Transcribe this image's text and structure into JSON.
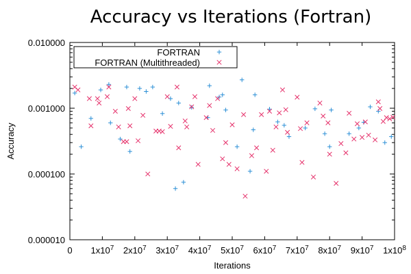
{
  "chart_data": {
    "type": "scatter",
    "title": "Accuracy vs Iterations (Fortran)",
    "xlabel": "Iterations",
    "ylabel": "Accuracy",
    "xlim": [
      0,
      100000000
    ],
    "ylim": [
      1e-05,
      0.01
    ],
    "yscale": "log",
    "grid": false,
    "legend_position": "top-left",
    "x_ticks": [
      {
        "value": 0,
        "base": "0",
        "exp": ""
      },
      {
        "value": 10000000,
        "base": "1x10",
        "exp": "7"
      },
      {
        "value": 20000000,
        "base": "2x10",
        "exp": "7"
      },
      {
        "value": 30000000,
        "base": "3x10",
        "exp": "7"
      },
      {
        "value": 40000000,
        "base": "4x10",
        "exp": "7"
      },
      {
        "value": 50000000,
        "base": "5x10",
        "exp": "7"
      },
      {
        "value": 60000000,
        "base": "6x10",
        "exp": "7"
      },
      {
        "value": 70000000,
        "base": "7x10",
        "exp": "7"
      },
      {
        "value": 80000000,
        "base": "8x10",
        "exp": "7"
      },
      {
        "value": 90000000,
        "base": "9x10",
        "exp": "7"
      },
      {
        "value": 100000000,
        "base": "1x10",
        "exp": "8"
      }
    ],
    "y_ticks": [
      {
        "value": 1e-05,
        "label": "0.000010"
      },
      {
        "value": 0.0001,
        "label": "0.000100"
      },
      {
        "value": 0.001,
        "label": "0.001000"
      },
      {
        "value": 0.01,
        "label": "0.010000"
      }
    ],
    "series": [
      {
        "name": "FORTRAN",
        "marker": "plus",
        "color": "#2b8fd6",
        "points": [
          [
            1500000,
            0.0017
          ],
          [
            3500000,
            0.00026
          ],
          [
            5000000,
            0.0044
          ],
          [
            6500000,
            0.0007
          ],
          [
            9500000,
            0.0019
          ],
          [
            12000000,
            0.0023
          ],
          [
            12500000,
            0.0006
          ],
          [
            15500000,
            0.00034
          ],
          [
            17500000,
            0.0021
          ],
          [
            18500000,
            0.00022
          ],
          [
            21500000,
            0.002
          ],
          [
            23500000,
            0.0018
          ],
          [
            25500000,
            0.0021
          ],
          [
            28500000,
            0.00083
          ],
          [
            31000000,
            0.0014
          ],
          [
            32500000,
            6e-05
          ],
          [
            33500000,
            0.0012
          ],
          [
            35000000,
            7.5e-05
          ],
          [
            37500000,
            0.00103
          ],
          [
            42500000,
            0.00072
          ],
          [
            43000000,
            0.0022
          ],
          [
            46000000,
            0.00148
          ],
          [
            47000000,
            0.0016
          ],
          [
            48000000,
            0.00094
          ],
          [
            51500000,
            0.00026
          ],
          [
            53000000,
            0.0027
          ],
          [
            55500000,
            0.00011
          ],
          [
            56500000,
            0.00047
          ],
          [
            57000000,
            0.0016
          ],
          [
            61500000,
            0.00097
          ],
          [
            64000000,
            0.00062
          ],
          [
            66000000,
            0.00055
          ],
          [
            67500000,
            0.00037
          ],
          [
            72500000,
            0.0005
          ],
          [
            75500000,
            0.00098
          ],
          [
            78500000,
            0.00041
          ],
          [
            80000000,
            0.00026
          ],
          [
            80500000,
            0.00094
          ],
          [
            86000000,
            0.00041
          ],
          [
            89000000,
            0.0005
          ],
          [
            90500000,
            0.00061
          ],
          [
            92500000,
            0.00105
          ],
          [
            95000000,
            0.0009
          ],
          [
            97000000,
            0.0003
          ],
          [
            99000000,
            0.00037
          ]
        ]
      },
      {
        "name": "FORTRAN (Multithreaded)",
        "marker": "cross",
        "color": "#e5306a",
        "points": [
          [
            1500000,
            0.0021
          ],
          [
            2500000,
            0.0019
          ],
          [
            5500000,
            0.0045
          ],
          [
            6000000,
            0.0014
          ],
          [
            6500000,
            0.00054
          ],
          [
            8500000,
            0.0014
          ],
          [
            9000000,
            0.0012
          ],
          [
            11500000,
            0.0015
          ],
          [
            12000000,
            0.0021
          ],
          [
            14000000,
            0.0009
          ],
          [
            15000000,
            0.00052
          ],
          [
            16500000,
            0.00031
          ],
          [
            17500000,
            0.00031
          ],
          [
            18000000,
            0.00099
          ],
          [
            18500000,
            0.00054
          ],
          [
            20000000,
            0.0014
          ],
          [
            21000000,
            0.00032
          ],
          [
            22500000,
            0.00078
          ],
          [
            24000000,
            0.0001
          ],
          [
            26500000,
            0.00045
          ],
          [
            27500000,
            0.00045
          ],
          [
            28500000,
            0.00044
          ],
          [
            30000000,
            0.0015
          ],
          [
            31000000,
            0.00053
          ],
          [
            33000000,
            0.0021
          ],
          [
            33500000,
            0.00025
          ],
          [
            35500000,
            0.00064
          ],
          [
            36000000,
            0.00052
          ],
          [
            37500000,
            0.00105
          ],
          [
            38500000,
            0.0015
          ],
          [
            39500000,
            0.00014
          ],
          [
            42000000,
            0.00072
          ],
          [
            43000000,
            0.0011
          ],
          [
            44000000,
            0.00046
          ],
          [
            45500000,
            0.0014
          ],
          [
            47000000,
            0.00017
          ],
          [
            48000000,
            0.0003
          ],
          [
            49000000,
            0.00014
          ],
          [
            50000000,
            0.00056
          ],
          [
            51500000,
            0.00012
          ],
          [
            53500000,
            0.0008
          ],
          [
            54000000,
            4.6e-05
          ],
          [
            56000000,
            0.00019
          ],
          [
            57500000,
            0.00025
          ],
          [
            59000000,
            0.0008
          ],
          [
            60500000,
            0.00011
          ],
          [
            61500000,
            0.0009
          ],
          [
            62500000,
            0.00023
          ],
          [
            63500000,
            0.00052
          ],
          [
            64500000,
            0.00085
          ],
          [
            65500000,
            0.0019
          ],
          [
            66500000,
            0.00095
          ],
          [
            67000000,
            0.00043
          ],
          [
            70000000,
            0.00147
          ],
          [
            71000000,
            0.00049
          ],
          [
            71500000,
            0.00015
          ],
          [
            73000000,
            0.0006
          ],
          [
            75000000,
            9e-05
          ],
          [
            77000000,
            0.0012
          ],
          [
            78000000,
            0.00076
          ],
          [
            79500000,
            0.0006
          ],
          [
            80000000,
            0.0002
          ],
          [
            82000000,
            7.2e-05
          ],
          [
            83500000,
            0.00029
          ],
          [
            85000000,
            0.00021
          ],
          [
            86000000,
            0.00084
          ],
          [
            87500000,
            0.00034
          ],
          [
            88500000,
            0.00058
          ],
          [
            90000000,
            0.00036
          ],
          [
            91000000,
            0.00062
          ],
          [
            92000000,
            0.00039
          ],
          [
            94000000,
            0.00033
          ],
          [
            95000000,
            0.00125
          ],
          [
            95500000,
            0.00099
          ],
          [
            96500000,
            0.00063
          ],
          [
            97500000,
            0.00072
          ],
          [
            98500000,
            0.00069
          ],
          [
            99500000,
            0.00073
          ]
        ]
      }
    ]
  }
}
